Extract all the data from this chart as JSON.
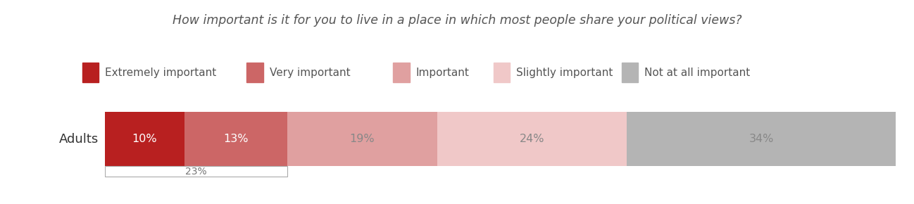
{
  "title": "How important is it for you to live in a place in which most people share your political views?",
  "row_label": "Adults",
  "categories": [
    "Extremely important",
    "Very important",
    "Important",
    "Slightly important",
    "Not at all important"
  ],
  "values": [
    10,
    13,
    19,
    24,
    34
  ],
  "colors": [
    "#b82020",
    "#cc6666",
    "#e0a0a0",
    "#f0c8c8",
    "#b4b4b4"
  ],
  "label_colors": [
    "#ffffff",
    "#ffffff",
    "#888888",
    "#888888",
    "#888888"
  ],
  "bar_labels": [
    "10%",
    "13%",
    "19%",
    "24%",
    "34%"
  ],
  "annotation_value": "23%",
  "background_color": "#ffffff",
  "title_fontsize": 12.5,
  "legend_fontsize": 11,
  "bar_label_fontsize": 11.5,
  "row_label_fontsize": 13
}
